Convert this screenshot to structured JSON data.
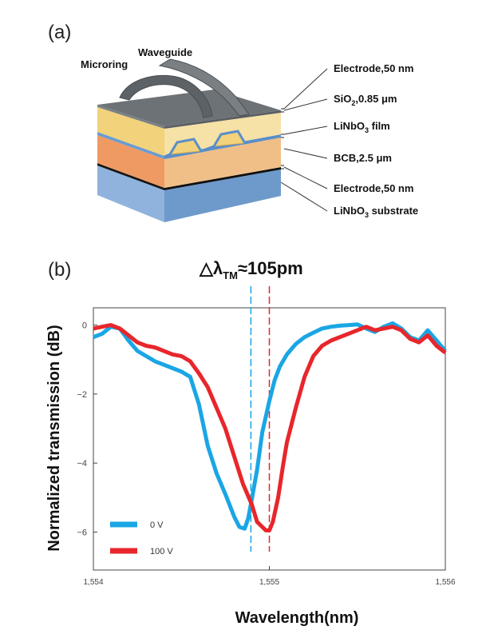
{
  "panel_a": {
    "label": "(a)",
    "microring_label": "Microring",
    "waveguide_label": "Waveguide",
    "layers": [
      {
        "name": "Electrode,50 nm"
      },
      {
        "name": "SiO",
        "sub": "2",
        "suffix": ",0.85 μm"
      },
      {
        "name": "LiNbO",
        "sub": "3",
        "suffix": " film"
      },
      {
        "name": "BCB,2.5 μm"
      },
      {
        "name": "Electrode,50 nm"
      },
      {
        "name": "LiNbO",
        "sub": "3",
        "suffix": " substrate"
      }
    ],
    "colors": {
      "top_electrode": "#6f7478",
      "sio2": "#f2d27a",
      "linbo3_film": "#6b9bd1",
      "bcb": "#ef9a63",
      "bottom_electrode": "#111111",
      "substrate": "#8fb3dc"
    }
  },
  "panel_b": {
    "label": "(b)",
    "delta_prefix": "△λ",
    "delta_sub": "TM",
    "delta_value": "≈105pm"
  },
  "chart_data": {
    "type": "line",
    "xlabel": "Wavelength(nm)",
    "ylabel": "Normalized transmission (dB)",
    "xlim": [
      1554,
      1556
    ],
    "ylim": [
      -7.1,
      0.5
    ],
    "xticks": [
      1554,
      1555,
      1556
    ],
    "xtick_labels": [
      "1,554",
      "1,555",
      "1,556"
    ],
    "yticks": [
      0,
      -2,
      -4,
      -6
    ],
    "ytick_labels": [
      "0",
      "−2",
      "−4",
      "−6"
    ],
    "grid": false,
    "legend": "lower-left",
    "markers": [
      {
        "x": 1554.895,
        "color": "#1aa6e4"
      },
      {
        "x": 1555.0,
        "color": "#e8262b"
      }
    ],
    "series": [
      {
        "name": "0 V",
        "color": "#1aa6e4",
        "x": [
          1554.0,
          1554.05,
          1554.1,
          1554.15,
          1554.2,
          1554.25,
          1554.3,
          1554.35,
          1554.4,
          1554.45,
          1554.5,
          1554.55,
          1554.6,
          1554.65,
          1554.7,
          1554.75,
          1554.8,
          1554.83,
          1554.86,
          1554.88,
          1554.9,
          1554.93,
          1554.96,
          1555.0,
          1555.03,
          1555.06,
          1555.1,
          1555.15,
          1555.2,
          1555.25,
          1555.3,
          1555.35,
          1555.4,
          1555.45,
          1555.5,
          1555.55,
          1555.6,
          1555.65,
          1555.7,
          1555.75,
          1555.8,
          1555.85,
          1555.9,
          1555.95,
          1556.0
        ],
        "y": [
          -0.35,
          -0.25,
          -0.05,
          -0.1,
          -0.45,
          -0.75,
          -0.9,
          -1.05,
          -1.15,
          -1.25,
          -1.35,
          -1.5,
          -2.3,
          -3.5,
          -4.3,
          -4.9,
          -5.55,
          -5.85,
          -5.9,
          -5.6,
          -5.05,
          -4.2,
          -3.1,
          -2.2,
          -1.6,
          -1.2,
          -0.85,
          -0.55,
          -0.35,
          -0.22,
          -0.1,
          -0.05,
          -0.02,
          0.0,
          0.02,
          -0.1,
          -0.2,
          -0.05,
          0.05,
          -0.1,
          -0.35,
          -0.45,
          -0.15,
          -0.45,
          -0.75
        ]
      },
      {
        "name": "100 V",
        "color": "#e8262b",
        "x": [
          1554.0,
          1554.05,
          1554.1,
          1554.15,
          1554.2,
          1554.25,
          1554.3,
          1554.35,
          1554.4,
          1554.45,
          1554.5,
          1554.55,
          1554.6,
          1554.65,
          1554.7,
          1554.75,
          1554.8,
          1554.85,
          1554.9,
          1554.93,
          1554.96,
          1554.98,
          1555.0,
          1555.02,
          1555.05,
          1555.08,
          1555.1,
          1555.15,
          1555.2,
          1555.25,
          1555.3,
          1555.35,
          1555.4,
          1555.45,
          1555.5,
          1555.55,
          1555.6,
          1555.65,
          1555.7,
          1555.75,
          1555.8,
          1555.85,
          1555.9,
          1555.95,
          1556.0
        ],
        "y": [
          -0.1,
          -0.05,
          0.0,
          -0.1,
          -0.3,
          -0.5,
          -0.6,
          -0.65,
          -0.75,
          -0.85,
          -0.9,
          -1.05,
          -1.4,
          -1.8,
          -2.4,
          -3.0,
          -3.8,
          -4.6,
          -5.2,
          -5.7,
          -5.85,
          -5.95,
          -5.95,
          -5.7,
          -5.0,
          -4.0,
          -3.4,
          -2.4,
          -1.5,
          -0.9,
          -0.6,
          -0.45,
          -0.35,
          -0.25,
          -0.15,
          -0.05,
          -0.15,
          -0.1,
          -0.05,
          -0.15,
          -0.4,
          -0.5,
          -0.3,
          -0.6,
          -0.8
        ]
      }
    ]
  }
}
